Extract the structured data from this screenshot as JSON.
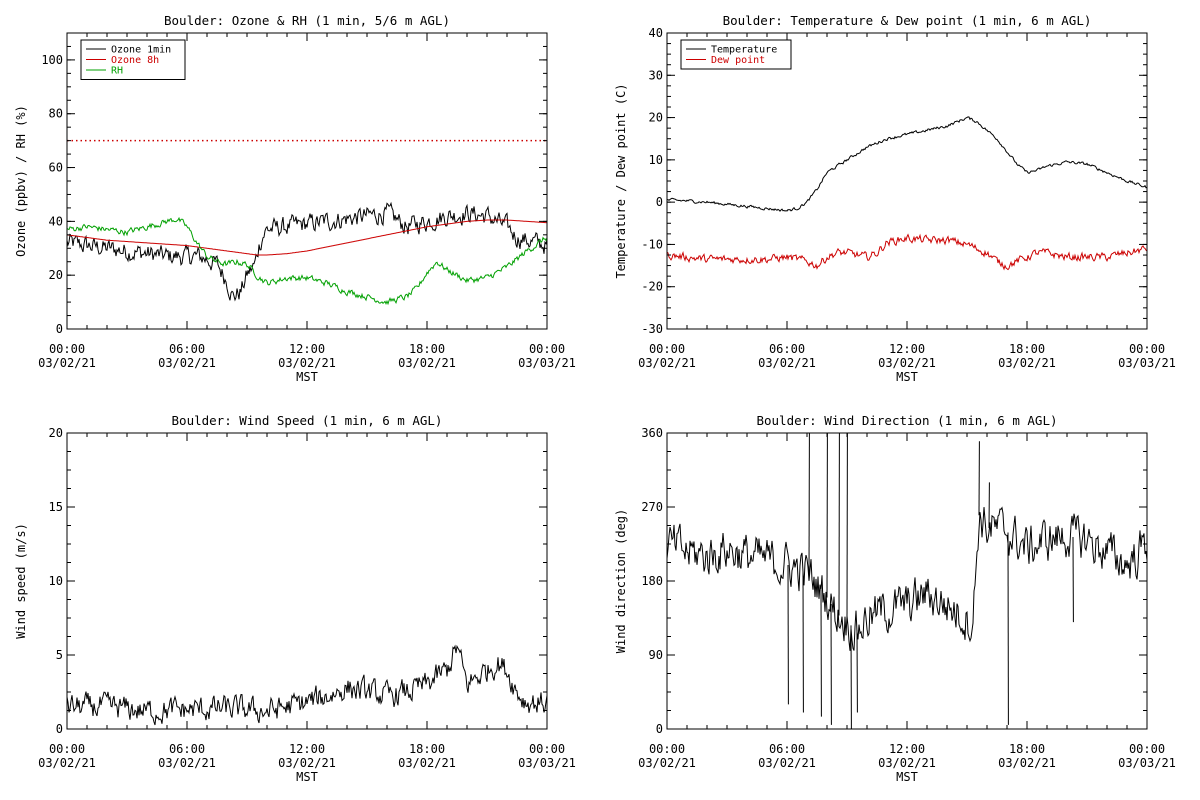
{
  "chart_data": [
    {
      "id": "ozone_rh",
      "type": "line",
      "title": "Boulder: Ozone & RH (1 min, 5/6 m AGL)",
      "xlabel": "MST",
      "ylabel": "Ozone (ppbv) / RH (%)",
      "xlim": [
        0,
        24
      ],
      "ylim": [
        0,
        110
      ],
      "yticks": [
        0,
        20,
        40,
        60,
        80,
        100
      ],
      "xtick_labels": [
        [
          "00:00",
          "03/02/21"
        ],
        [
          "06:00",
          "03/02/21"
        ],
        [
          "12:00",
          "03/02/21"
        ],
        [
          "18:00",
          "03/02/21"
        ],
        [
          "00:00",
          "03/03/21"
        ]
      ],
      "legend": {
        "placement": "top-left",
        "entries": [
          {
            "name": "Ozone 1min",
            "color": "#000000"
          },
          {
            "name": "Ozone 8h",
            "color": "#cc0000"
          },
          {
            "name": "RH",
            "color": "#00a000"
          }
        ]
      },
      "reference_lines": [
        {
          "y": 70,
          "color": "#cc0000",
          "style": "dotted"
        }
      ],
      "series": [
        {
          "name": "Ozone 1min",
          "color": "#000000",
          "noise": 3,
          "x": [
            0,
            1,
            2,
            3,
            4,
            5,
            6,
            6.5,
            7,
            7.5,
            8,
            8.3,
            8.7,
            9,
            9.4,
            9.6,
            9.8,
            10,
            11,
            12,
            13,
            14,
            15,
            16,
            17,
            18,
            19,
            20,
            21,
            22,
            22.5,
            23,
            24
          ],
          "y": [
            32,
            31,
            30,
            29,
            28,
            27,
            27,
            27,
            26,
            24,
            18,
            12,
            14,
            20,
            24,
            31,
            35,
            37,
            38,
            39,
            40,
            41,
            42,
            43,
            38,
            40,
            42,
            43,
            42,
            38,
            34,
            33,
            31
          ]
        },
        {
          "name": "Ozone 8h",
          "color": "#cc0000",
          "noise": 0,
          "x": [
            0,
            2,
            4,
            6,
            8,
            9.5,
            10,
            11,
            12,
            14,
            16,
            18,
            20,
            21,
            22,
            23,
            24
          ],
          "y": [
            35,
            33,
            32,
            31,
            29,
            27.5,
            27.5,
            28,
            29,
            32,
            35,
            38,
            40,
            40.5,
            40.5,
            40,
            39.5
          ]
        },
        {
          "name": "RH",
          "color": "#00a000",
          "noise": 1,
          "x": [
            0,
            1,
            2,
            3,
            4,
            5,
            5.5,
            6,
            6.5,
            7,
            7.5,
            8,
            8.5,
            9,
            9.5,
            10,
            11,
            12,
            13,
            14,
            15,
            16,
            17,
            17.5,
            18,
            18.5,
            19,
            20,
            21,
            22,
            23,
            24
          ],
          "y": [
            37,
            38,
            37,
            36,
            38,
            40,
            41,
            38,
            32,
            27,
            25,
            24,
            25,
            24,
            20,
            17,
            19,
            19,
            17,
            14,
            12,
            10,
            12,
            15,
            21,
            25,
            22,
            18,
            19,
            23,
            29,
            34
          ]
        }
      ]
    },
    {
      "id": "temp_dew",
      "type": "line",
      "title": "Boulder: Temperature & Dew point (1 min, 6 m AGL)",
      "xlabel": "MST",
      "ylabel": "Temperature / Dew point (C)",
      "xlim": [
        0,
        24
      ],
      "ylim": [
        -30,
        40
      ],
      "yticks": [
        -30,
        -20,
        -10,
        0,
        10,
        20,
        30,
        40
      ],
      "xtick_labels": [
        [
          "00:00",
          "03/02/21"
        ],
        [
          "06:00",
          "03/02/21"
        ],
        [
          "12:00",
          "03/02/21"
        ],
        [
          "18:00",
          "03/02/21"
        ],
        [
          "00:00",
          "03/03/21"
        ]
      ],
      "legend": {
        "placement": "top-left",
        "entries": [
          {
            "name": "Temperature",
            "color": "#000000"
          },
          {
            "name": "Dew point",
            "color": "#cc0000"
          }
        ]
      },
      "series": [
        {
          "name": "Temperature",
          "color": "#000000",
          "noise": 0.3,
          "x": [
            0,
            1,
            2,
            3,
            4,
            5,
            6,
            6.5,
            7,
            7.5,
            8,
            9,
            10,
            11,
            12,
            13,
            14,
            14.5,
            15,
            15.5,
            16,
            16.5,
            17,
            17.5,
            18,
            18.5,
            19,
            20,
            21,
            22,
            23,
            24
          ],
          "y": [
            0.5,
            0.3,
            0,
            -0.5,
            -1,
            -1.5,
            -2,
            -1.5,
            0,
            3,
            7,
            10,
            13,
            15,
            16,
            17,
            18,
            19,
            20,
            19,
            17,
            15,
            12,
            9,
            7,
            7.5,
            8.5,
            9.5,
            9,
            7,
            5,
            3.5
          ]
        },
        {
          "name": "Dew point",
          "color": "#cc0000",
          "noise": 0.8,
          "x": [
            0,
            1,
            2,
            3,
            4,
            5,
            6,
            7,
            7.5,
            8,
            8.5,
            9,
            10,
            10.5,
            11,
            12,
            13,
            14,
            15,
            16,
            16.5,
            17,
            17.5,
            18,
            18.5,
            19,
            20,
            21,
            22,
            23,
            24
          ],
          "y": [
            -12.5,
            -13,
            -13.5,
            -13.5,
            -13.5,
            -13.5,
            -13,
            -14,
            -15,
            -13,
            -12,
            -12,
            -13,
            -12,
            -9.5,
            -8.5,
            -9,
            -9,
            -10,
            -12,
            -14,
            -15,
            -14,
            -13,
            -12,
            -12,
            -13,
            -13,
            -13,
            -12,
            -11
          ]
        }
      ]
    },
    {
      "id": "wind_speed",
      "type": "line",
      "title": "Boulder: Wind Speed (1 min, 6 m AGL)",
      "xlabel": "MST",
      "ylabel": "Wind speed (m/s)",
      "xlim": [
        0,
        24
      ],
      "ylim": [
        0,
        20
      ],
      "yticks": [
        0,
        5,
        10,
        15,
        20
      ],
      "xtick_labels": [
        [
          "00:00",
          "03/02/21"
        ],
        [
          "06:00",
          "03/02/21"
        ],
        [
          "12:00",
          "03/02/21"
        ],
        [
          "18:00",
          "03/02/21"
        ],
        [
          "00:00",
          "03/03/21"
        ]
      ],
      "series": [
        {
          "name": "Wind speed",
          "color": "#000000",
          "noise": 0.7,
          "clip_min": 0,
          "x": [
            0,
            2,
            4,
            6,
            8,
            10,
            12,
            13,
            14,
            15,
            16,
            17,
            18,
            19,
            19.5,
            20,
            21,
            21.5,
            22,
            22.5,
            23,
            24
          ],
          "y": [
            1.5,
            1.5,
            1.2,
            1.3,
            1.4,
            1.2,
            1.8,
            2.2,
            2.8,
            2.5,
            2.2,
            2.5,
            3,
            4,
            5.5,
            3,
            4,
            4.5,
            4,
            2.5,
            1.8,
            1.8
          ]
        }
      ]
    },
    {
      "id": "wind_dir",
      "type": "line",
      "title": "Boulder: Wind Direction (1 min, 6 m AGL)",
      "xlabel": "MST",
      "ylabel": "Wind direction (deg)",
      "xlim": [
        0,
        24
      ],
      "ylim": [
        0,
        360
      ],
      "yticks": [
        0,
        90,
        180,
        270,
        360
      ],
      "xtick_labels": [
        [
          "00:00",
          "03/02/21"
        ],
        [
          "06:00",
          "03/02/21"
        ],
        [
          "12:00",
          "03/02/21"
        ],
        [
          "18:00",
          "03/02/21"
        ],
        [
          "00:00",
          "03/03/21"
        ]
      ],
      "series": [
        {
          "name": "Wind direction",
          "color": "#000000",
          "noise": 22,
          "clip_min": 0,
          "clip_max": 360,
          "x": [
            0,
            1,
            2,
            3,
            4,
            5,
            6,
            7,
            7.5,
            8,
            8.5,
            9,
            9.5,
            10,
            11,
            12,
            13,
            14,
            15,
            15.3,
            15.6,
            16,
            17,
            18,
            19,
            20,
            21,
            22,
            23,
            24
          ],
          "y": [
            225,
            215,
            210,
            220,
            210,
            205,
            200,
            190,
            175,
            160,
            140,
            130,
            120,
            135,
            145,
            150,
            165,
            150,
            135,
            130,
            260,
            245,
            240,
            220,
            230,
            235,
            230,
            215,
            200,
            225
          ]
        }
      ],
      "spikes": [
        {
          "x": 6.05,
          "y": 30
        },
        {
          "x": 6.8,
          "y": 20
        },
        {
          "x": 7.1,
          "y": 360
        },
        {
          "x": 7.7,
          "y": 15
        },
        {
          "x": 8.0,
          "y": 360
        },
        {
          "x": 8.2,
          "y": 5
        },
        {
          "x": 8.6,
          "y": 360
        },
        {
          "x": 9.0,
          "y": 360
        },
        {
          "x": 9.2,
          "y": 0
        },
        {
          "x": 9.5,
          "y": 20
        },
        {
          "x": 15.6,
          "y": 350
        },
        {
          "x": 17.05,
          "y": 5
        },
        {
          "x": 16.1,
          "y": 300
        },
        {
          "x": 20.3,
          "y": 130
        }
      ]
    }
  ]
}
